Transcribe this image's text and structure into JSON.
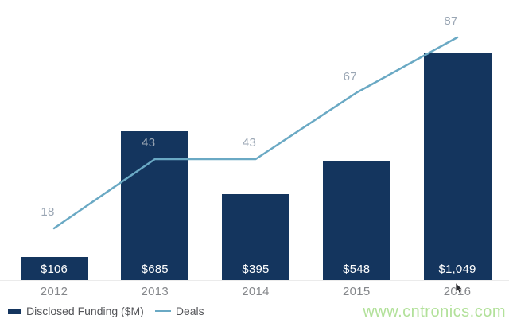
{
  "chart_data": {
    "type": "bar",
    "subtype": "bar-line-combo",
    "title": "",
    "xlabel": "",
    "ylabel": "",
    "grid": false,
    "legend_position": "bottom-left",
    "categories": [
      "2012",
      "2013",
      "2014",
      "2015",
      "2016"
    ],
    "series": [
      {
        "name": "Disclosed Funding ($M)",
        "type": "bar",
        "values": [
          106,
          685,
          395,
          548,
          1049
        ],
        "labels": [
          "$106",
          "$685",
          "$395",
          "$548",
          "$1,049"
        ],
        "color": "#14355e",
        "label_color": "#ffffff"
      },
      {
        "name": "Deals",
        "type": "line",
        "values": [
          18,
          43,
          43,
          67,
          87
        ],
        "labels": [
          "18",
          "43",
          "43",
          "67",
          "87"
        ],
        "color": "#6aa9c4",
        "label_color": "#9aa6b4"
      }
    ],
    "axis_label_color": "#85878b",
    "ylim_bar": [
      0,
      1290
    ],
    "ylim_line": [
      0,
      101
    ]
  },
  "watermark": {
    "text": "www.cntronics.com",
    "color": "#b2e19a"
  }
}
